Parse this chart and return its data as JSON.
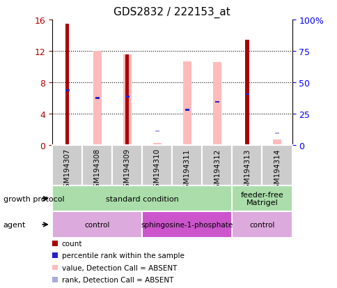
{
  "title": "GDS2832 / 222153_at",
  "samples": [
    "GSM194307",
    "GSM194308",
    "GSM194309",
    "GSM194310",
    "GSM194311",
    "GSM194312",
    "GSM194313",
    "GSM194314"
  ],
  "count_values": [
    15.5,
    null,
    11.6,
    null,
    null,
    null,
    13.4,
    null
  ],
  "pink_bar_values": [
    null,
    12.0,
    11.6,
    0.3,
    10.7,
    10.6,
    null,
    0.7
  ],
  "blue_marker_values": [
    7.0,
    6.0,
    6.2,
    null,
    4.5,
    5.5,
    6.5,
    null
  ],
  "light_blue_marker_values": [
    null,
    null,
    null,
    1.8,
    null,
    null,
    null,
    1.5
  ],
  "ylim": [
    0,
    16
  ],
  "yticks_left": [
    0,
    4,
    8,
    12,
    16
  ],
  "yticks_right": [
    0,
    25,
    50,
    75,
    100
  ],
  "count_color": "#aa0000",
  "pink_color": "#ffbbbb",
  "blue_color": "#2222cc",
  "light_blue_color": "#aaaadd",
  "growth_protocol_color": "#aaddaa",
  "agent_control_color": "#ddaadd",
  "agent_sphingo_color": "#cc55cc",
  "sample_bg_color": "#cccccc",
  "growth_protocol_groups": [
    {
      "label": "standard condition",
      "start": 0,
      "end": 6
    },
    {
      "label": "feeder-free\nMatrigel",
      "start": 6,
      "end": 8
    }
  ],
  "agent_groups": [
    {
      "label": "control",
      "start": 0,
      "end": 3
    },
    {
      "label": "sphingosine-1-phosphate",
      "start": 3,
      "end": 6
    },
    {
      "label": "control",
      "start": 6,
      "end": 8
    }
  ],
  "legend_items": [
    {
      "color": "#aa0000",
      "label": "count"
    },
    {
      "color": "#2222cc",
      "label": "percentile rank within the sample"
    },
    {
      "color": "#ffbbbb",
      "label": "value, Detection Call = ABSENT"
    },
    {
      "color": "#aaaadd",
      "label": "rank, Detection Call = ABSENT"
    }
  ]
}
